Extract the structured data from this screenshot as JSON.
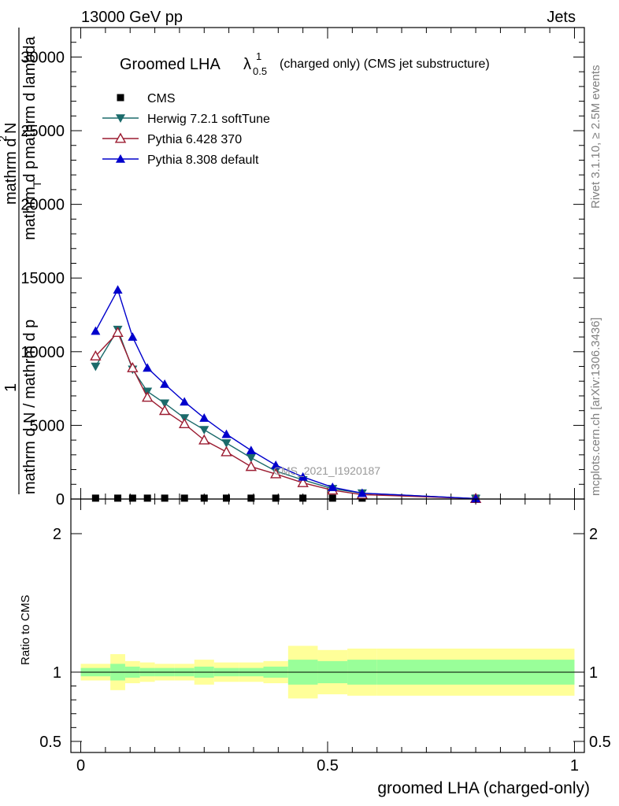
{
  "header": {
    "left": "13000 GeV pp",
    "right": "Jets"
  },
  "side_text": {
    "rivet": "Rivet 3.1.10, ≥ 2.5M events",
    "mcplots": "mcplots.cern.ch [arXiv:1306.3436]"
  },
  "watermark": "CMS_2021_I1920187",
  "chart_data": [
    {
      "type": "line",
      "title_main": "Groomed LHA",
      "title_symbol": "λ",
      "title_sup": "1",
      "title_sub": "0.5",
      "title_rest": "(charged only) (CMS jet substructure)",
      "ylabel_pieces": [
        "1",
        "mathrm d N / mathrm d p",
        "mathrm d p",
        "mathrm d",
        "mathrm d lambda",
        "T",
        "2",
        "mathrm d",
        "mathrm d",
        "mathrm d",
        "mathrm d",
        "mathrm",
        "N",
        "rm",
        "mathrm d N",
        "mathrm d p_T mathrm d lambda"
      ],
      "ylabel_lines": [
        "1",
        "mathrm d N / mathrm d p",
        "mathrm d",
        "2",
        "mathrm d",
        "N"
      ],
      "ylim": [
        0,
        32000
      ],
      "xlim": [
        -0.02,
        1.02
      ],
      "yticks": [
        0,
        5000,
        10000,
        15000,
        20000,
        25000,
        30000
      ],
      "ytick_labels": [
        "0",
        "5000",
        "10000",
        "15000",
        "20000",
        "25000",
        "30000"
      ],
      "legend_position": "top-left",
      "series": [
        {
          "name": "CMS",
          "color": "#000000",
          "marker": "square",
          "x": [
            0.03,
            0.075,
            0.105,
            0.135,
            0.17,
            0.21,
            0.25,
            0.295,
            0.345,
            0.395,
            0.45,
            0.51,
            0.57,
            0.8
          ],
          "y": [
            60,
            60,
            60,
            60,
            60,
            60,
            60,
            60,
            60,
            60,
            60,
            60,
            60,
            60
          ]
        },
        {
          "name": "Herwig 7.2.1 softTune",
          "color": "#1b6b6b",
          "marker": "triangle-down",
          "x": [
            0.03,
            0.075,
            0.105,
            0.135,
            0.17,
            0.21,
            0.25,
            0.295,
            0.345,
            0.395,
            0.45,
            0.51,
            0.57,
            0.8
          ],
          "y": [
            9000,
            11500,
            8800,
            7300,
            6500,
            5500,
            4700,
            3800,
            2800,
            1900,
            1300,
            700,
            400,
            30
          ]
        },
        {
          "name": "Pythia 6.428 370",
          "color": "#9b1b30",
          "marker": "triangle-open",
          "x": [
            0.03,
            0.075,
            0.105,
            0.135,
            0.17,
            0.21,
            0.25,
            0.295,
            0.345,
            0.395,
            0.45,
            0.51,
            0.57,
            0.8
          ],
          "y": [
            9700,
            11300,
            8900,
            6900,
            6000,
            5100,
            4000,
            3200,
            2200,
            1700,
            1100,
            600,
            300,
            30
          ]
        },
        {
          "name": "Pythia 8.308 default",
          "color": "#0000cc",
          "marker": "triangle-up",
          "x": [
            0.03,
            0.075,
            0.105,
            0.135,
            0.17,
            0.21,
            0.25,
            0.295,
            0.345,
            0.395,
            0.45,
            0.51,
            0.57,
            0.8
          ],
          "y": [
            11400,
            14200,
            11000,
            8900,
            7800,
            6600,
            5500,
            4400,
            3300,
            2300,
            1500,
            800,
            400,
            30
          ]
        }
      ]
    },
    {
      "type": "area",
      "ylabel": "Ratio to CMS",
      "xlabel": "groomed LHA (charged-only)",
      "xlim": [
        -0.02,
        1.02
      ],
      "xticks": [
        0,
        0.5,
        1
      ],
      "xtick_labels": [
        "0",
        "0.5",
        "1"
      ],
      "ylim": [
        0.42,
        2.25
      ],
      "yticks": [
        0.5,
        1,
        2
      ],
      "ytick_labels": [
        "0.5",
        "1",
        "2"
      ],
      "bin_edges": [
        0,
        0.06,
        0.09,
        0.12,
        0.15,
        0.19,
        0.23,
        0.27,
        0.32,
        0.37,
        0.42,
        0.48,
        0.54,
        0.6,
        1.0
      ],
      "band_inner": {
        "color": "#99ff99",
        "lo": [
          0.97,
          0.94,
          0.96,
          0.97,
          0.97,
          0.97,
          0.96,
          0.97,
          0.97,
          0.96,
          0.91,
          0.92,
          0.91,
          0.91
        ],
        "hi": [
          1.03,
          1.06,
          1.04,
          1.03,
          1.03,
          1.03,
          1.04,
          1.03,
          1.03,
          1.04,
          1.09,
          1.08,
          1.09,
          1.09
        ]
      },
      "band_outer": {
        "color": "#ffff99",
        "lo": [
          0.94,
          0.87,
          0.92,
          0.93,
          0.94,
          0.94,
          0.91,
          0.93,
          0.93,
          0.92,
          0.81,
          0.84,
          0.83,
          0.83
        ],
        "hi": [
          1.06,
          1.13,
          1.08,
          1.07,
          1.06,
          1.06,
          1.09,
          1.07,
          1.07,
          1.08,
          1.19,
          1.16,
          1.17,
          1.17
        ]
      },
      "reference_line": 1
    }
  ]
}
